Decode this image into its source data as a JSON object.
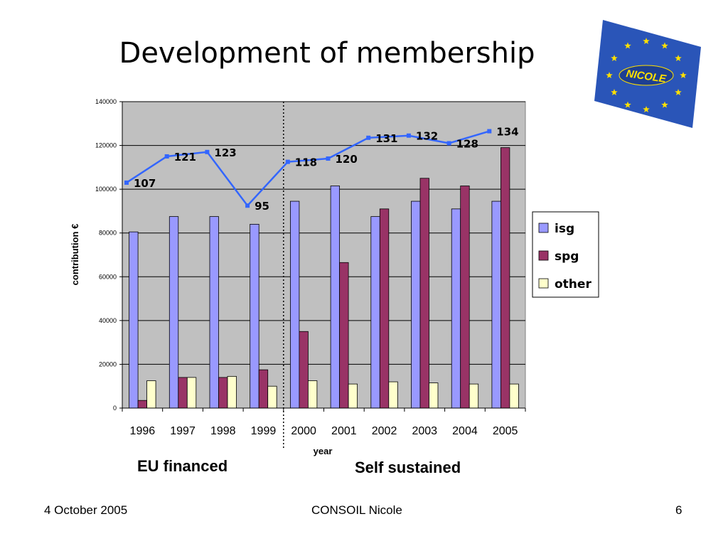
{
  "slide": {
    "title": "Development of membership",
    "region_left": "EU financed",
    "region_right": "Self sustained"
  },
  "logo": {
    "text": "NICOLE",
    "background": "#2a55b8",
    "star_color": "#ffe000"
  },
  "footer": {
    "date": "4 October 2005",
    "center": "CONSOIL Nicole",
    "page": "6"
  },
  "chart_data": {
    "type": "bar",
    "categories": [
      "1996",
      "1997",
      "1998",
      "1999",
      "2000",
      "2001",
      "2002",
      "2003",
      "2004",
      "2005"
    ],
    "xlabel": "year",
    "ylabel": "contribution  €",
    "ylim": [
      0,
      140000
    ],
    "yticks": [
      0,
      20000,
      40000,
      60000,
      80000,
      100000,
      120000,
      140000
    ],
    "grid": true,
    "legend_position": "right",
    "divider_after_category": "1999",
    "series": [
      {
        "name": "isg",
        "color": "#9999ff",
        "values": [
          80500,
          87500,
          87500,
          84000,
          94500,
          101500,
          87500,
          94500,
          91000,
          94500
        ]
      },
      {
        "name": "spg",
        "color": "#993366",
        "values": [
          3500,
          14000,
          14000,
          17500,
          35000,
          66500,
          91000,
          105000,
          101500,
          119000
        ]
      },
      {
        "name": "other",
        "color": "#ffffcc",
        "values": [
          12500,
          14000,
          14500,
          10000,
          12500,
          11000,
          12000,
          11500,
          11000,
          11000
        ]
      }
    ],
    "line_series": {
      "color": "#3366ff",
      "labels": [
        "107",
        "121",
        "123",
        "95",
        "118",
        "120",
        "131",
        "132",
        "128",
        "134"
      ],
      "values": [
        103000,
        115000,
        117000,
        92500,
        112500,
        114000,
        123500,
        124500,
        121000,
        126500
      ]
    }
  }
}
